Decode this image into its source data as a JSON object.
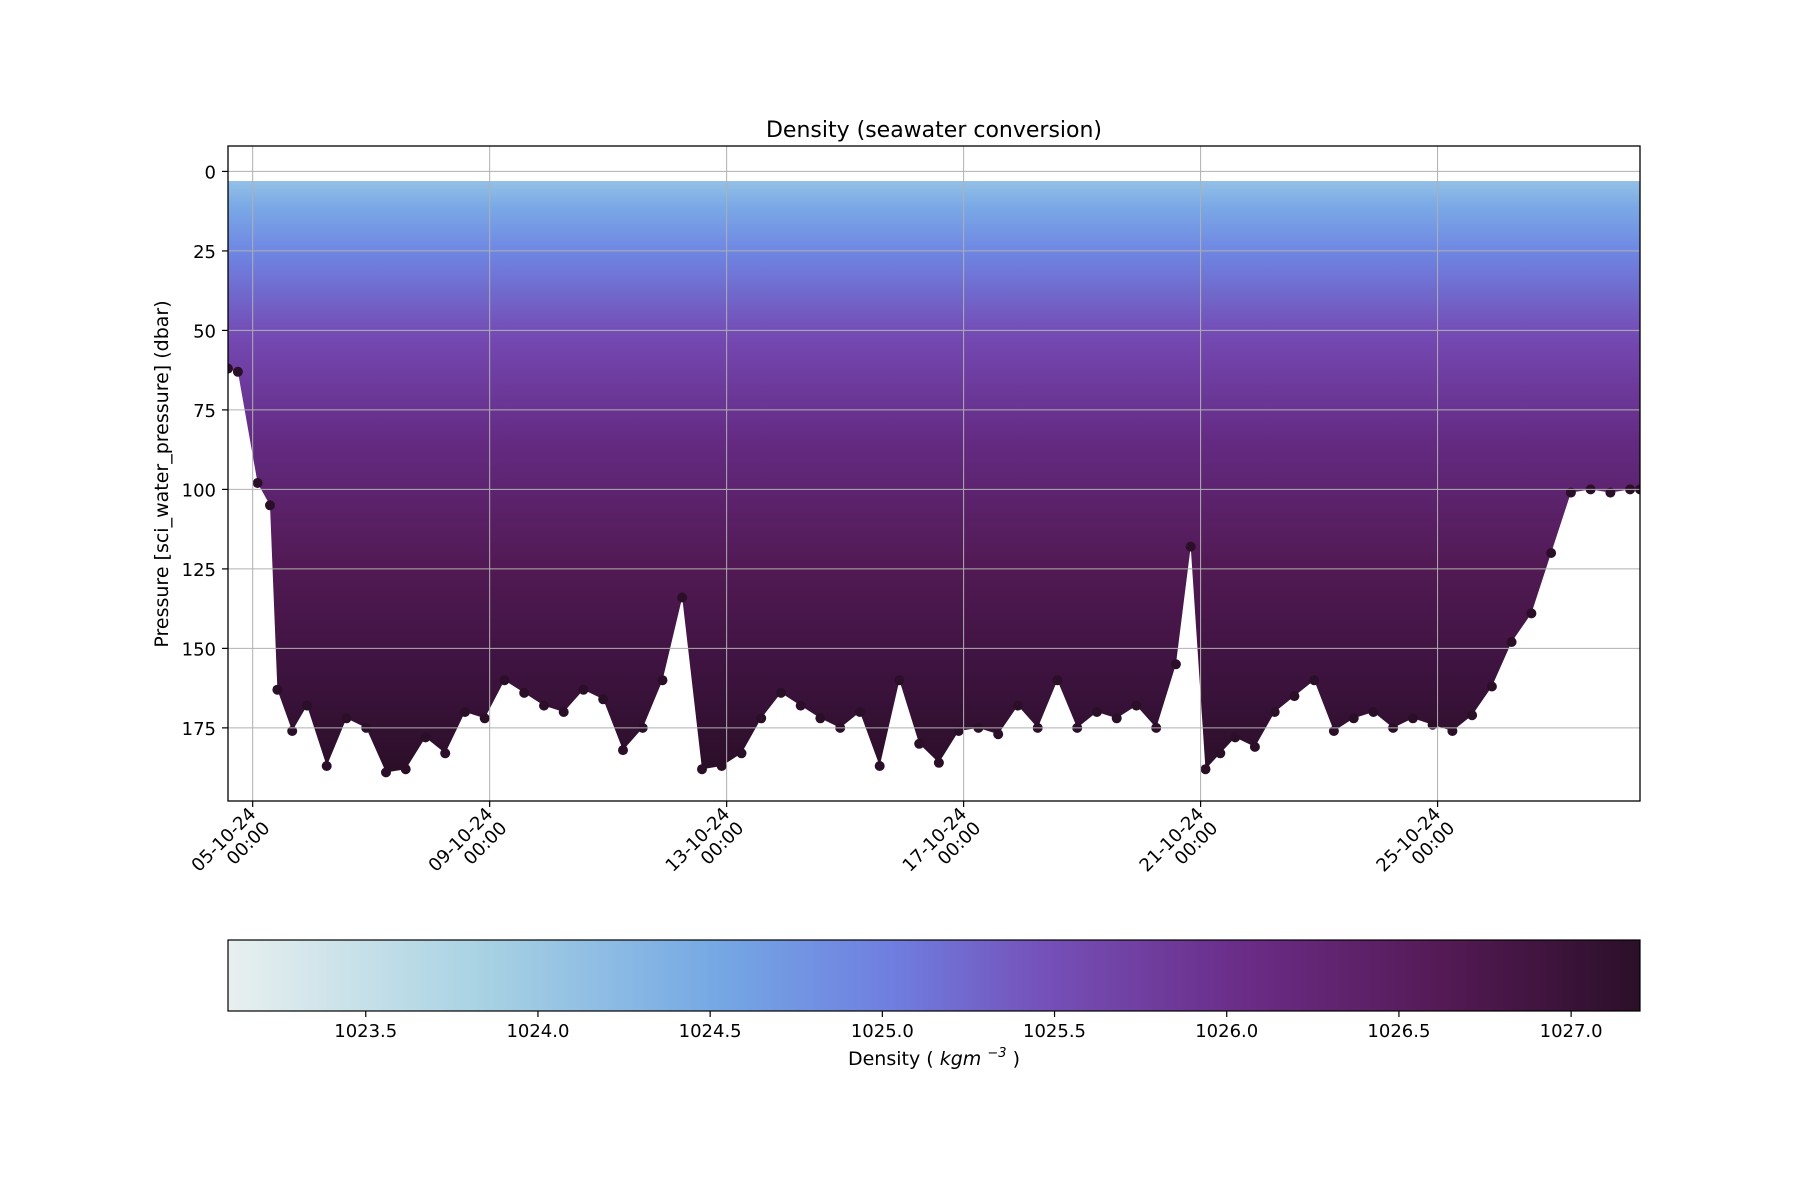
{
  "chart_data": {
    "type": "scatter",
    "title": "Density (seawater conversion)",
    "ylabel": "Pressure [sci_water_pressure] (dbar)",
    "xlabel": "",
    "x_range": [
      "2024-10-04T14:00",
      "2024-10-28T10:00"
    ],
    "ylim": [
      198,
      -8
    ],
    "y_inverted": true,
    "grid": true,
    "x_ticks": [
      {
        "date": "2024-10-05T00:00",
        "line1": "05-10-24",
        "line2": "00:00"
      },
      {
        "date": "2024-10-09T00:00",
        "line1": "09-10-24",
        "line2": "00:00"
      },
      {
        "date": "2024-10-13T00:00",
        "line1": "13-10-24",
        "line2": "00:00"
      },
      {
        "date": "2024-10-17T00:00",
        "line1": "17-10-24",
        "line2": "00:00"
      },
      {
        "date": "2024-10-21T00:00",
        "line1": "21-10-24",
        "line2": "00:00"
      },
      {
        "date": "2024-10-25T00:00",
        "line1": "25-10-24",
        "line2": "00:00"
      }
    ],
    "y_ticks": [
      0,
      25,
      50,
      75,
      100,
      125,
      150,
      175
    ],
    "max_depth_profile": {
      "x": [
        "2024-10-04T14:00",
        "2024-10-04T18:00",
        "2024-10-05T02:00",
        "2024-10-05T07:00",
        "2024-10-05T10:00",
        "2024-10-05T16:00",
        "2024-10-05T22:00",
        "2024-10-06T06:00",
        "2024-10-06T14:00",
        "2024-10-06T22:00",
        "2024-10-07T06:00",
        "2024-10-07T14:00",
        "2024-10-07T22:00",
        "2024-10-08T06:00",
        "2024-10-08T14:00",
        "2024-10-08T22:00",
        "2024-10-09T06:00",
        "2024-10-09T14:00",
        "2024-10-09T22:00",
        "2024-10-10T06:00",
        "2024-10-10T14:00",
        "2024-10-10T22:00",
        "2024-10-11T06:00",
        "2024-10-11T14:00",
        "2024-10-11T22:00",
        "2024-10-12T06:00",
        "2024-10-12T14:00",
        "2024-10-12T22:00",
        "2024-10-13T06:00",
        "2024-10-13T14:00",
        "2024-10-13T22:00",
        "2024-10-14T06:00",
        "2024-10-14T14:00",
        "2024-10-14T22:00",
        "2024-10-15T06:00",
        "2024-10-15T14:00",
        "2024-10-15T22:00",
        "2024-10-16T06:00",
        "2024-10-16T14:00",
        "2024-10-16T22:00",
        "2024-10-17T06:00",
        "2024-10-17T14:00",
        "2024-10-17T22:00",
        "2024-10-18T06:00",
        "2024-10-18T14:00",
        "2024-10-18T22:00",
        "2024-10-19T06:00",
        "2024-10-19T14:00",
        "2024-10-19T22:00",
        "2024-10-20T06:00",
        "2024-10-20T14:00",
        "2024-10-20T20:00",
        "2024-10-21T02:00",
        "2024-10-21T08:00",
        "2024-10-21T14:00",
        "2024-10-21T22:00",
        "2024-10-22T06:00",
        "2024-10-22T14:00",
        "2024-10-22T22:00",
        "2024-10-23T06:00",
        "2024-10-23T14:00",
        "2024-10-23T22:00",
        "2024-10-24T06:00",
        "2024-10-24T14:00",
        "2024-10-24T22:00",
        "2024-10-25T06:00",
        "2024-10-25T14:00",
        "2024-10-25T22:00",
        "2024-10-26T06:00",
        "2024-10-26T14:00",
        "2024-10-26T22:00",
        "2024-10-27T06:00",
        "2024-10-27T14:00",
        "2024-10-27T22:00",
        "2024-10-28T06:00",
        "2024-10-28T10:00"
      ],
      "max_pressure": [
        62,
        63,
        98,
        105,
        163,
        176,
        168,
        187,
        172,
        175,
        189,
        188,
        178,
        183,
        170,
        172,
        160,
        164,
        168,
        170,
        163,
        166,
        182,
        175,
        160,
        134,
        188,
        187,
        183,
        172,
        164,
        168,
        172,
        175,
        170,
        187,
        160,
        180,
        186,
        176,
        175,
        177,
        168,
        175,
        160,
        175,
        170,
        172,
        168,
        175,
        155,
        118,
        188,
        183,
        178,
        181,
        170,
        165,
        160,
        176,
        172,
        170,
        175,
        172,
        174,
        176,
        171,
        162,
        148,
        139,
        120,
        101,
        100,
        101,
        100,
        100
      ]
    },
    "surface_min_pressure": 3,
    "colorbar": {
      "label": "Density",
      "unit": "kgm",
      "unit_exp": "−3",
      "range": [
        1023.1,
        1027.2
      ],
      "ticks": [
        "1023.5",
        "1024.0",
        "1024.5",
        "1025.0",
        "1025.5",
        "1026.0",
        "1026.5",
        "1027.0"
      ],
      "colormap": [
        [
          0.0,
          "#e8f0ef"
        ],
        [
          0.18,
          "#a8d2e3"
        ],
        [
          0.35,
          "#74a7e4"
        ],
        [
          0.47,
          "#6f7ee0"
        ],
        [
          0.58,
          "#7550b8"
        ],
        [
          0.72,
          "#6a2c87"
        ],
        [
          0.86,
          "#541a55"
        ],
        [
          1.0,
          "#2b0f28"
        ]
      ]
    }
  }
}
